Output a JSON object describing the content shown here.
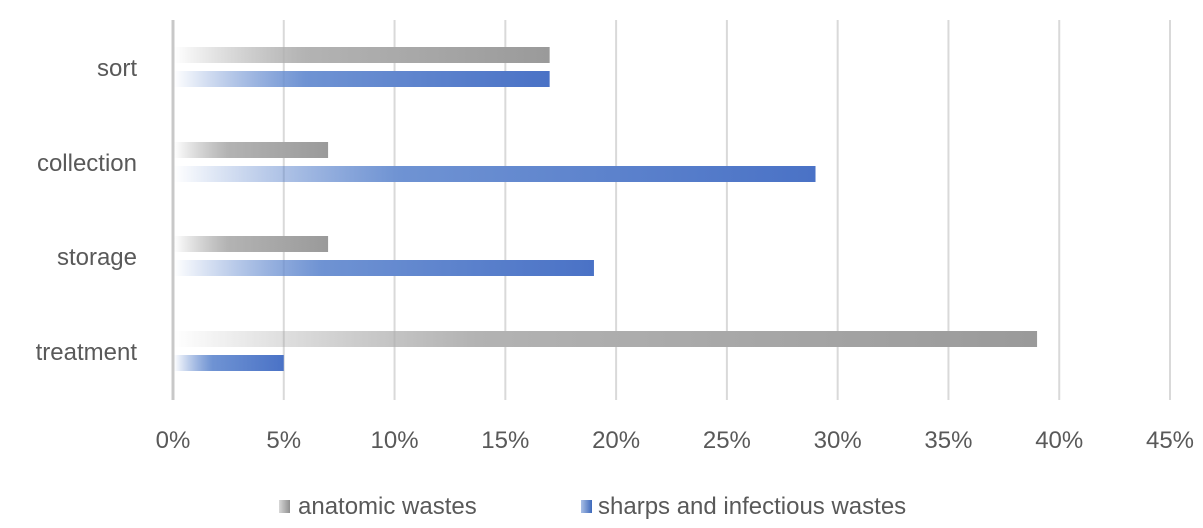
{
  "chart_data": {
    "type": "bar",
    "orientation": "horizontal",
    "categories": [
      "sort",
      "collection",
      "storage",
      "treatment"
    ],
    "series": [
      {
        "name": "anatomic wastes",
        "values": [
          17,
          7,
          7,
          39
        ],
        "color": "#9e9e9e"
      },
      {
        "name": "sharps and infectious wastes",
        "values": [
          17,
          29,
          19,
          5
        ],
        "color": "#4472c4"
      }
    ],
    "x_ticks": [
      "0%",
      "5%",
      "10%",
      "15%",
      "20%",
      "25%",
      "30%",
      "35%",
      "40%",
      "45%"
    ],
    "xlim": [
      0,
      45
    ],
    "grid": "vertical",
    "legend_position": "bottom"
  }
}
